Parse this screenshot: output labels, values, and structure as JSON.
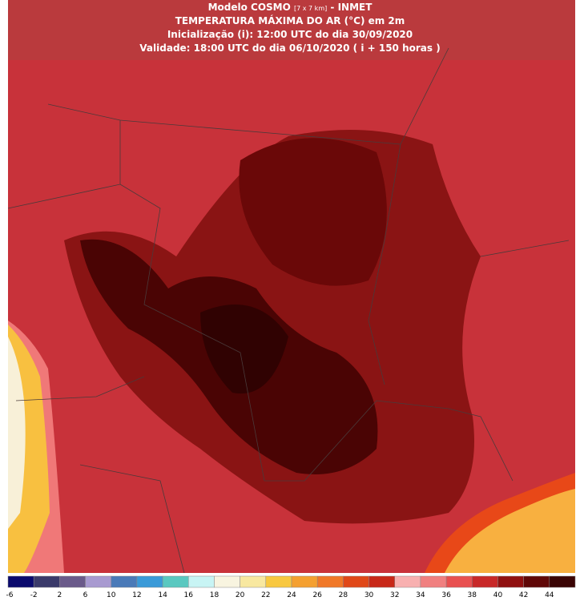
{
  "header": {
    "line1_a": "Modelo COSMO",
    "line1_b": "[7 x 7 km]",
    "line1_c": "- INMET",
    "line2": "TEMPERATURA MÁXIMA DO AR (°C) em 2m",
    "line3": "Inicialização (i): 12:00 UTC do dia 30/09/2020",
    "line4": "Validade: 18:00 UTC do dia 06/10/2020 ( i + 150 horas )"
  },
  "colorbar": {
    "labels": [
      "-6",
      "-2",
      "2",
      "6",
      "10",
      "12",
      "14",
      "16",
      "18",
      "20",
      "22",
      "24",
      "26",
      "28",
      "30",
      "32",
      "34",
      "36",
      "38",
      "40",
      "42",
      "44"
    ],
    "colors": [
      "#0a0a6e",
      "#3a3a6a",
      "#6a5a8a",
      "#a89ad0",
      "#4a7ab8",
      "#3a9ad8",
      "#5ac8c0",
      "#c8f4f4",
      "#f8f4e0",
      "#f8e8a0",
      "#f8c840",
      "#f4a030",
      "#f07828",
      "#e04818",
      "#c82818",
      "#f8b0b0",
      "#f08080",
      "#e85050",
      "#c82828",
      "#901010",
      "#600808",
      "#3a0404"
    ]
  }
}
